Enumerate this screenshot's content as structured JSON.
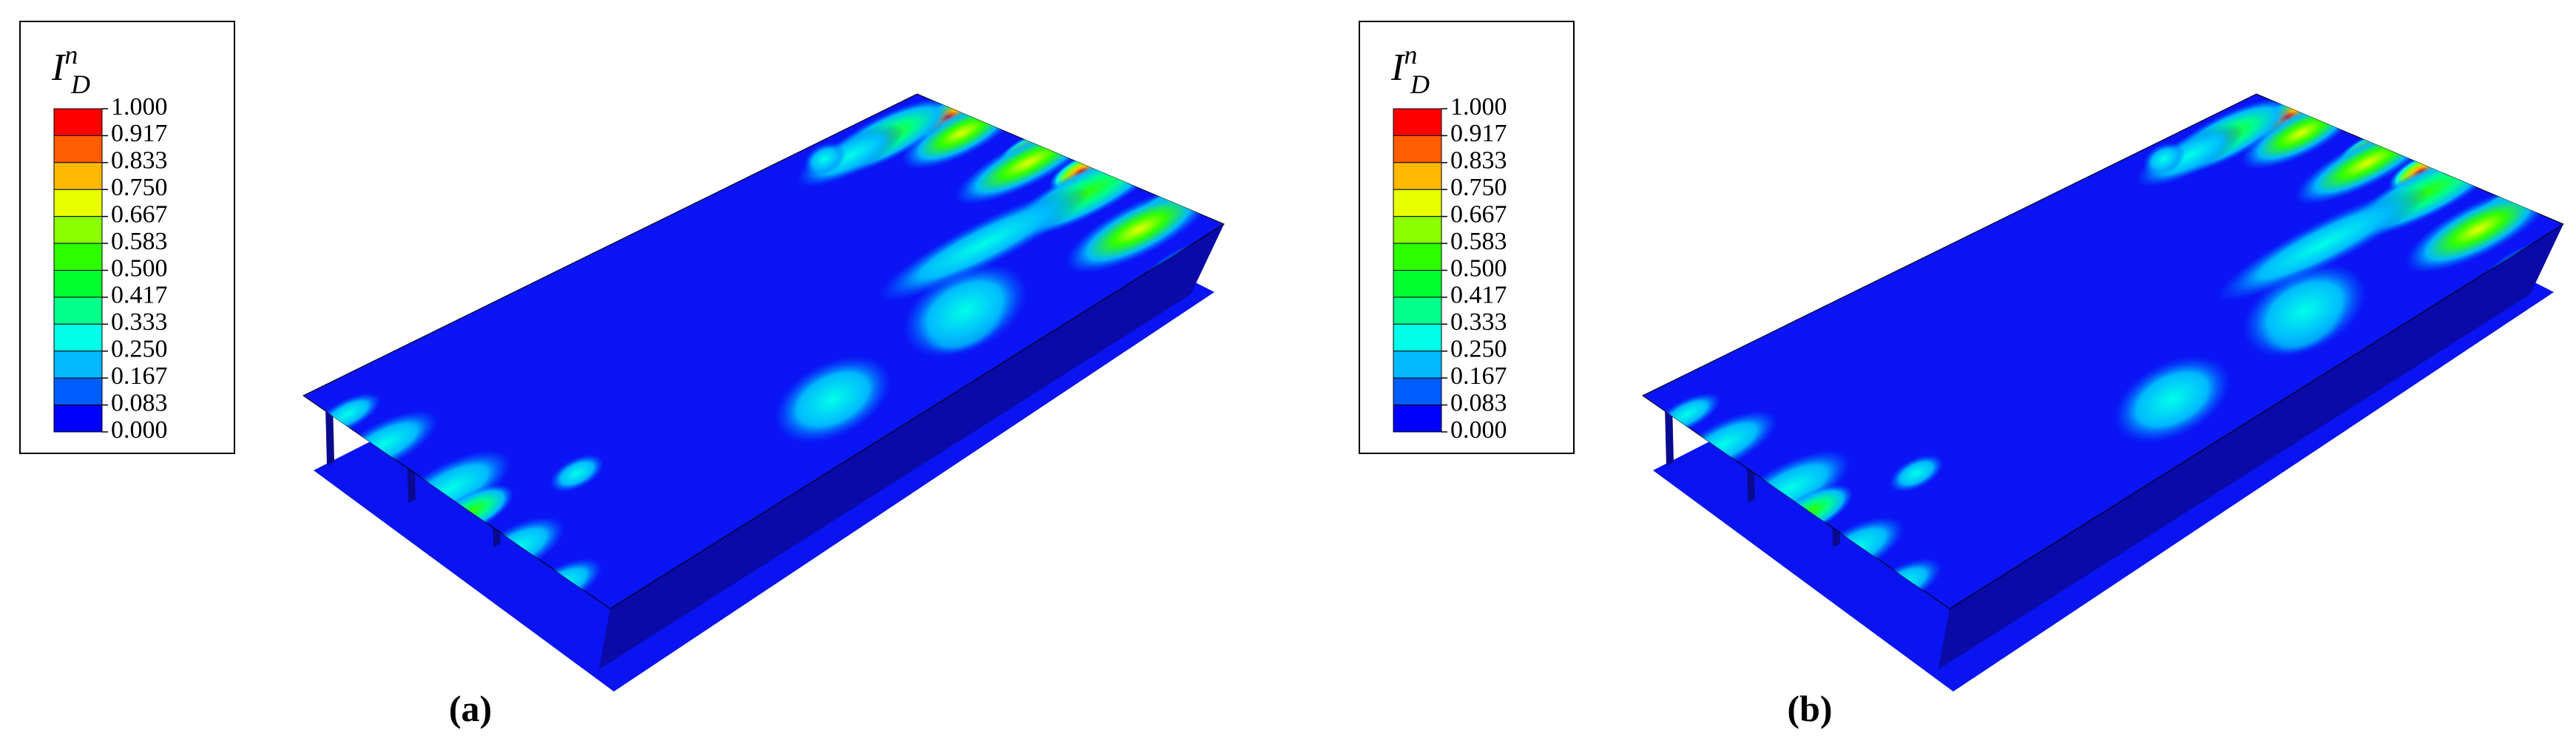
{
  "panels": [
    {
      "label": "(a)",
      "legend": {
        "title": {
          "base": "I",
          "sub": "D",
          "sup": "n"
        },
        "levels": [
          "1.000",
          "0.917",
          "0.833",
          "0.750",
          "0.667",
          "0.583",
          "0.500",
          "0.417",
          "0.333",
          "0.250",
          "0.167",
          "0.083",
          "0.000"
        ]
      }
    },
    {
      "label": "(b)",
      "legend": {
        "title": {
          "base": "I",
          "sub": "D",
          "sup": "n"
        },
        "levels": [
          "1.000",
          "0.917",
          "0.833",
          "0.750",
          "0.667",
          "0.583",
          "0.500",
          "0.417",
          "0.333",
          "0.250",
          "0.167",
          "0.083",
          "0.000"
        ]
      }
    }
  ]
}
